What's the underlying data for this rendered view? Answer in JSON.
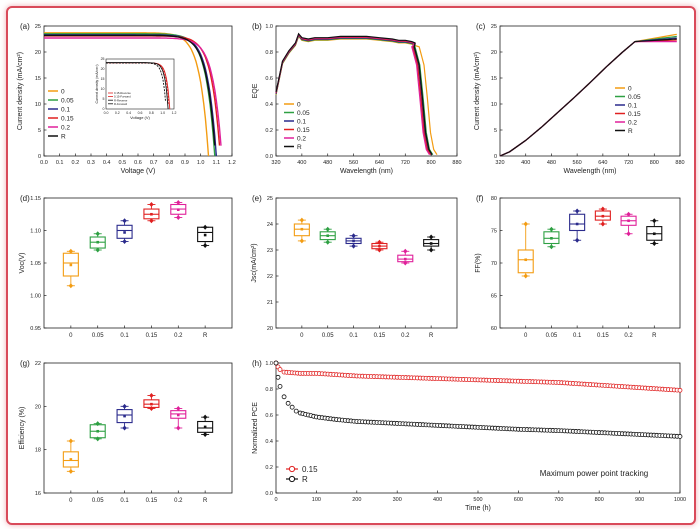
{
  "figure": {
    "background": "#ffffff",
    "frame_color": "#d94a5a"
  },
  "colors": {
    "0": "#f39c12",
    "0.05": "#2ea043",
    "0.1": "#2b2b8c",
    "0.15": "#e02020",
    "0.2": "#e0209a",
    "R": "#111111"
  },
  "chart_data": [
    {
      "id": "a",
      "panel_label": "(a)",
      "type": "line",
      "xlabel": "Voltage (V)",
      "ylabel": "Current density (mA/cm²)",
      "xlim": [
        0,
        1.2
      ],
      "ylim": [
        0,
        25
      ],
      "xticks": [
        "0.0",
        "0.1",
        "0.2",
        "0.3",
        "0.4",
        "0.5",
        "0.6",
        "0.7",
        "0.8",
        "0.9",
        "1.0",
        "1.1",
        "1.2"
      ],
      "yticks": [
        "0",
        "5",
        "10",
        "15",
        "20",
        "25"
      ],
      "legend": [
        "0",
        "0.05",
        "0.1",
        "0.15",
        "0.2",
        "R"
      ],
      "legend_position": "left",
      "series": [
        {
          "name": "0",
          "jsc": 23.7,
          "voc": 1.05
        },
        {
          "name": "0.05",
          "jsc": 23.5,
          "voc": 1.09
        },
        {
          "name": "0.1",
          "jsc": 23.3,
          "voc": 1.1
        },
        {
          "name": "0.15",
          "jsc": 23.1,
          "voc": 1.125
        },
        {
          "name": "0.2",
          "jsc": 22.7,
          "voc": 1.135
        },
        {
          "name": "R",
          "jsc": 23.2,
          "voc": 1.095
        }
      ],
      "inset": {
        "xlabel": "Voltage (V)",
        "ylabel": "Current density (mA/cm²)",
        "xlim": [
          0,
          1.2
        ],
        "ylim": [
          0,
          25
        ],
        "xticks": [
          "0.0",
          "0.2",
          "0.4",
          "0.6",
          "0.8",
          "1.0",
          "1.2"
        ],
        "yticks": [
          "0",
          "5",
          "10",
          "15",
          "20",
          "25"
        ],
        "legend": [
          "0.15-Reverse",
          "0.15-Forward",
          "R-Reverse",
          "R-Forward"
        ],
        "series": [
          {
            "name": "0.15-Reverse",
            "jsc": 23.1,
            "voc": 1.125
          },
          {
            "name": "0.15-Forward",
            "jsc": 23.0,
            "voc": 1.115
          },
          {
            "name": "R-Reverse",
            "jsc": 23.2,
            "voc": 1.095
          },
          {
            "name": "R-Forward",
            "jsc": 23.0,
            "voc": 1.06
          }
        ]
      }
    },
    {
      "id": "b",
      "panel_label": "(b)",
      "type": "line",
      "xlabel": "Wavelength (nm)",
      "ylabel": "EQE",
      "xlim": [
        320,
        880
      ],
      "ylim": [
        0,
        1.0
      ],
      "xticks": [
        "320",
        "400",
        "480",
        "560",
        "640",
        "720",
        "800",
        "880"
      ],
      "yticks": [
        "0.0",
        "0.2",
        "0.4",
        "0.6",
        "0.8",
        "1.0"
      ],
      "legend": [
        "0",
        "0.05",
        "0.1",
        "0.15",
        "0.2",
        "R"
      ],
      "legend_position": "bottom-left",
      "shape": {
        "x": [
          320,
          340,
          360,
          380,
          390,
          400,
          420,
          440,
          480,
          520,
          560,
          600,
          640,
          680,
          700,
          720,
          740,
          750
        ],
        "y": [
          0.48,
          0.72,
          0.8,
          0.86,
          0.93,
          0.9,
          0.89,
          0.9,
          0.9,
          0.91,
          0.91,
          0.91,
          0.9,
          0.89,
          0.88,
          0.88,
          0.87,
          0.86
        ]
      },
      "series": [
        {
          "name": "0",
          "edge": 808
        },
        {
          "name": "0.05",
          "edge": 795
        },
        {
          "name": "0.1",
          "edge": 790
        },
        {
          "name": "0.15",
          "edge": 788
        },
        {
          "name": "0.2",
          "edge": 785
        },
        {
          "name": "R",
          "edge": 793
        }
      ]
    },
    {
      "id": "c",
      "panel_label": "(c)",
      "type": "line",
      "xlabel": "Wavelength (nm)",
      "ylabel": "Current density (mA/cm²)",
      "xlim": [
        320,
        880
      ],
      "ylim": [
        0,
        25
      ],
      "xticks": [
        "320",
        "400",
        "480",
        "560",
        "640",
        "720",
        "800",
        "880"
      ],
      "yticks": [
        "0",
        "5",
        "10",
        "15",
        "20",
        "25"
      ],
      "legend": [
        "0",
        "0.05",
        "0.1",
        "0.15",
        "0.2",
        "R"
      ],
      "legend_position": "right",
      "shape": {
        "x": [
          320,
          350,
          400,
          450,
          500,
          550,
          600,
          650,
          700,
          740,
          760,
          780,
          800,
          820,
          840,
          860,
          870
        ],
        "y": [
          0,
          0.8,
          3.0,
          5.6,
          8.4,
          11.2,
          14.1,
          17.1,
          19.9,
          21.7,
          22.0,
          22.1,
          22.15,
          22.2,
          22.2,
          22.2,
          22.2
        ]
      },
      "series": [
        {
          "name": "0",
          "final": 23.4
        },
        {
          "name": "0.05",
          "final": 23.0
        },
        {
          "name": "0.1",
          "final": 22.7
        },
        {
          "name": "0.15",
          "final": 22.3
        },
        {
          "name": "0.2",
          "final": 22.0
        },
        {
          "name": "R",
          "final": 22.5
        }
      ]
    },
    {
      "id": "d",
      "panel_label": "(d)",
      "type": "box",
      "categories": [
        "0",
        "0.05",
        "0.1",
        "0.15",
        "0.2",
        "R"
      ],
      "ylabel": "Voc(V)",
      "ylim": [
        0.95,
        1.15
      ],
      "yticks": [
        "0.95",
        "1.00",
        "1.05",
        "1.10",
        "1.15"
      ],
      "boxes": [
        {
          "min": 1.015,
          "q1": 1.03,
          "median": 1.05,
          "q3": 1.065,
          "max": 1.068,
          "mean": 1.047
        },
        {
          "min": 1.07,
          "q1": 1.073,
          "median": 1.082,
          "q3": 1.09,
          "max": 1.095,
          "mean": 1.082
        },
        {
          "min": 1.083,
          "q1": 1.088,
          "median": 1.1,
          "q3": 1.108,
          "max": 1.115,
          "mean": 1.097
        },
        {
          "min": 1.115,
          "q1": 1.118,
          "median": 1.125,
          "q3": 1.133,
          "max": 1.14,
          "mean": 1.125
        },
        {
          "min": 1.12,
          "q1": 1.125,
          "median": 1.133,
          "q3": 1.14,
          "max": 1.143,
          "mean": 1.132
        },
        {
          "min": 1.077,
          "q1": 1.083,
          "median": 1.097,
          "q3": 1.105,
          "max": 1.105,
          "mean": 1.093
        }
      ]
    },
    {
      "id": "e",
      "panel_label": "(e)",
      "type": "box",
      "categories": [
        "0",
        "0.05",
        "0.1",
        "0.15",
        "0.2",
        "R"
      ],
      "ylabel": "Jsc(mA/cm²)",
      "ylim": [
        20,
        25
      ],
      "yticks": [
        "20",
        "21",
        "22",
        "23",
        "24",
        "25"
      ],
      "boxes": [
        {
          "min": 23.35,
          "q1": 23.55,
          "median": 23.8,
          "q3": 24.0,
          "max": 24.15,
          "mean": 23.8
        },
        {
          "min": 23.3,
          "q1": 23.4,
          "median": 23.55,
          "q3": 23.7,
          "max": 23.8,
          "mean": 23.55
        },
        {
          "min": 23.15,
          "q1": 23.25,
          "median": 23.35,
          "q3": 23.45,
          "max": 23.55,
          "mean": 23.35
        },
        {
          "min": 23.0,
          "q1": 23.05,
          "median": 23.15,
          "q3": 23.25,
          "max": 23.3,
          "mean": 23.15
        },
        {
          "min": 22.5,
          "q1": 22.55,
          "median": 22.65,
          "q3": 22.8,
          "max": 22.95,
          "mean": 22.65
        },
        {
          "min": 23.0,
          "q1": 23.15,
          "median": 23.25,
          "q3": 23.4,
          "max": 23.5,
          "mean": 23.25
        }
      ]
    },
    {
      "id": "f",
      "panel_label": "(f)",
      "type": "box",
      "categories": [
        "0",
        "0.05",
        "0.1",
        "0.15",
        "0.2",
        "R"
      ],
      "ylabel": "FF(%)",
      "ylim": [
        60,
        80
      ],
      "yticks": [
        "60",
        "65",
        "70",
        "75",
        "80"
      ],
      "boxes": [
        {
          "min": 68,
          "q1": 68.5,
          "median": 70.5,
          "q3": 72,
          "max": 76,
          "mean": 70.5
        },
        {
          "min": 72.5,
          "q1": 73,
          "median": 73.8,
          "q3": 74.8,
          "max": 75.2,
          "mean": 73.8
        },
        {
          "min": 73.5,
          "q1": 75,
          "median": 76,
          "q3": 77.5,
          "max": 78,
          "mean": 76
        },
        {
          "min": 76,
          "q1": 76.6,
          "median": 77.2,
          "q3": 78,
          "max": 78.3,
          "mean": 77.2
        },
        {
          "min": 74.5,
          "q1": 75.8,
          "median": 76.5,
          "q3": 77.2,
          "max": 77.5,
          "mean": 76.5
        },
        {
          "min": 73,
          "q1": 73.5,
          "median": 74.5,
          "q3": 75.6,
          "max": 76.5,
          "mean": 74.5
        }
      ]
    },
    {
      "id": "g",
      "panel_label": "(g)",
      "type": "box",
      "categories": [
        "0",
        "0.05",
        "0.1",
        "0.15",
        "0.2",
        "R"
      ],
      "ylabel": "Efficiency (%)",
      "ylim": [
        16,
        22
      ],
      "yticks": [
        "16",
        "18",
        "20",
        "22"
      ],
      "boxes": [
        {
          "min": 17.0,
          "q1": 17.2,
          "median": 17.5,
          "q3": 17.9,
          "max": 18.4,
          "mean": 17.55
        },
        {
          "min": 18.5,
          "q1": 18.55,
          "median": 18.85,
          "q3": 19.15,
          "max": 19.2,
          "mean": 18.85
        },
        {
          "min": 19.0,
          "q1": 19.25,
          "median": 19.6,
          "q3": 19.85,
          "max": 20.0,
          "mean": 19.55
        },
        {
          "min": 19.9,
          "q1": 19.95,
          "median": 20.1,
          "q3": 20.3,
          "max": 20.5,
          "mean": 20.1
        },
        {
          "min": 19.0,
          "q1": 19.45,
          "median": 19.65,
          "q3": 19.8,
          "max": 19.9,
          "mean": 19.6
        },
        {
          "min": 18.7,
          "q1": 18.8,
          "median": 19.0,
          "q3": 19.3,
          "max": 19.5,
          "mean": 19.05
        }
      ]
    },
    {
      "id": "h",
      "panel_label": "(h)",
      "type": "scatter",
      "xlabel": "Time (h)",
      "ylabel": "Normalized PCE",
      "xlim": [
        0,
        1000
      ],
      "ylim": [
        0,
        1.0
      ],
      "xticks": [
        "0",
        "100",
        "200",
        "300",
        "400",
        "500",
        "600",
        "700",
        "800",
        "900",
        "1000"
      ],
      "yticks": [
        "0.0",
        "0.2",
        "0.4",
        "0.6",
        "0.8",
        "1.0"
      ],
      "annotation": "Maximum power point tracking",
      "legend": [
        "0.15",
        "R"
      ],
      "legend_position": "bottom-left",
      "series": [
        {
          "name": "0.15",
          "x": [
            0,
            5,
            10,
            20,
            40,
            60,
            100,
            150,
            200,
            300,
            400,
            500,
            600,
            700,
            800,
            900,
            1000
          ],
          "y": [
            1.0,
            0.97,
            0.95,
            0.93,
            0.925,
            0.92,
            0.92,
            0.91,
            0.9,
            0.89,
            0.88,
            0.87,
            0.86,
            0.85,
            0.83,
            0.81,
            0.79
          ]
        },
        {
          "name": "R",
          "x": [
            0,
            5,
            10,
            20,
            30,
            40,
            50,
            60,
            80,
            100,
            150,
            200,
            300,
            400,
            500,
            600,
            700,
            800,
            900,
            1000
          ],
          "y": [
            1.0,
            0.89,
            0.82,
            0.74,
            0.69,
            0.66,
            0.63,
            0.615,
            0.6,
            0.585,
            0.565,
            0.55,
            0.535,
            0.52,
            0.505,
            0.49,
            0.48,
            0.465,
            0.45,
            0.435
          ]
        }
      ]
    }
  ]
}
